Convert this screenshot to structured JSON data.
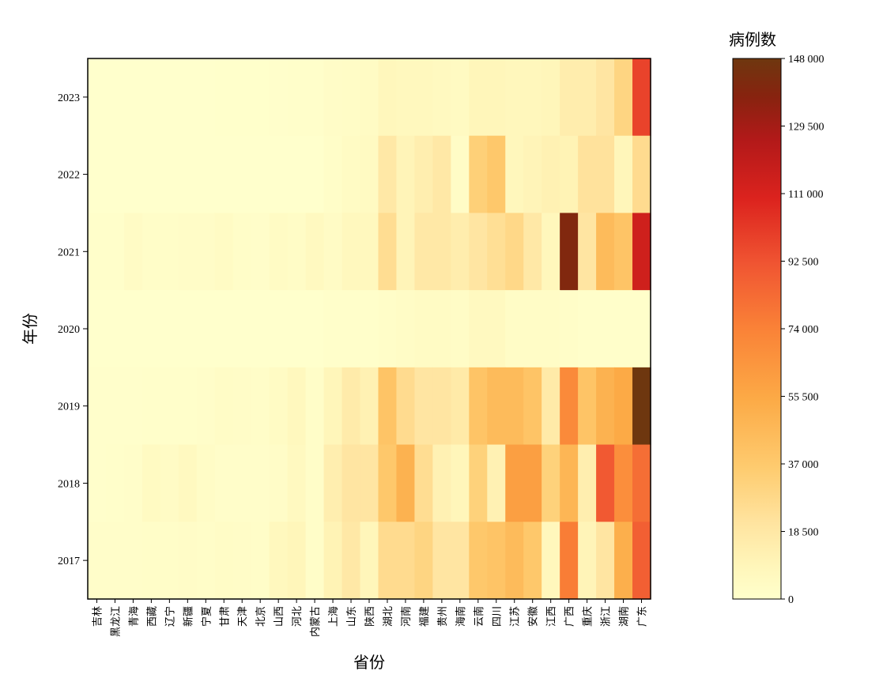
{
  "chart_data": {
    "type": "heatmap",
    "xlabel": "省份",
    "ylabel": "年份",
    "colorbar_label": "病例数",
    "colorbar_range": [
      0,
      148000
    ],
    "colorbar_ticks": [
      "0",
      "18 500",
      "37 000",
      "55 500",
      "74 000",
      "92 500",
      "111 000",
      "129 500",
      "148 000"
    ],
    "colorbar_tick_values": [
      0,
      18500,
      37000,
      55500,
      74000,
      92500,
      111000,
      129500,
      148000
    ],
    "provinces": [
      "吉林",
      "黑龙江",
      "青海",
      "西藏",
      "辽宁",
      "新疆",
      "宁夏",
      "甘肃",
      "天津",
      "北京",
      "山西",
      "河北",
      "内蒙古",
      "上海",
      "山东",
      "陕西",
      "湖北",
      "河南",
      "福建",
      "贵州",
      "海南",
      "云南",
      "四川",
      "江苏",
      "安徽",
      "江西",
      "广西",
      "重庆",
      "浙江",
      "湖南",
      "广东"
    ],
    "years": [
      "2023",
      "2022",
      "2021",
      "2020",
      "2019",
      "2018",
      "2017"
    ],
    "values": [
      [
        100,
        100,
        150,
        100,
        150,
        150,
        200,
        300,
        400,
        400,
        600,
        1000,
        1000,
        2500,
        3000,
        4000,
        8000,
        7000,
        7000,
        6000,
        5000,
        9000,
        9000,
        8000,
        8000,
        9000,
        15000,
        15000,
        20000,
        30000,
        98000
      ],
      [
        100,
        150,
        100,
        100,
        100,
        100,
        100,
        100,
        100,
        100,
        200,
        200,
        150,
        2000,
        4000,
        5000,
        18000,
        10000,
        14000,
        18000,
        3000,
        33000,
        38000,
        8000,
        10000,
        12000,
        11000,
        22000,
        22000,
        9000,
        26000
      ],
      [
        1000,
        1000,
        3500,
        2000,
        2000,
        2500,
        2500,
        4000,
        2000,
        1500,
        4000,
        3000,
        6000,
        3500,
        7000,
        7000,
        25000,
        10000,
        18000,
        18000,
        15000,
        20000,
        24000,
        28000,
        18000,
        8000,
        140000,
        20000,
        45000,
        40000,
        115000
      ],
      [
        100,
        100,
        100,
        100,
        100,
        100,
        100,
        100,
        100,
        100,
        200,
        200,
        200,
        1000,
        1000,
        1000,
        2000,
        3000,
        4000,
        4000,
        3000,
        6000,
        6000,
        3000,
        3000,
        3000,
        2000,
        1000,
        1000,
        1000,
        1000
      ],
      [
        500,
        600,
        600,
        800,
        800,
        800,
        1500,
        3000,
        2500,
        2000,
        4000,
        7000,
        2000,
        9000,
        16000,
        12000,
        40000,
        26000,
        20000,
        20000,
        17000,
        40000,
        45000,
        45000,
        40000,
        17000,
        70000,
        40000,
        50000,
        55000,
        148000
      ],
      [
        500,
        1000,
        1500,
        5000,
        3500,
        6000,
        3000,
        1500,
        1500,
        1500,
        2500,
        6000,
        2000,
        14000,
        20000,
        20000,
        38000,
        50000,
        25000,
        12000,
        9000,
        32000,
        12000,
        60000,
        60000,
        32000,
        48000,
        14000,
        90000,
        68000,
        82000
      ],
      [
        1500,
        1500,
        1500,
        2000,
        2000,
        2500,
        2000,
        3000,
        2500,
        2000,
        7000,
        9000,
        2000,
        11000,
        18000,
        9000,
        26000,
        26000,
        30000,
        20000,
        20000,
        38000,
        40000,
        45000,
        38000,
        8000,
        76000,
        10000,
        20000,
        52000,
        88000
      ]
    ]
  }
}
